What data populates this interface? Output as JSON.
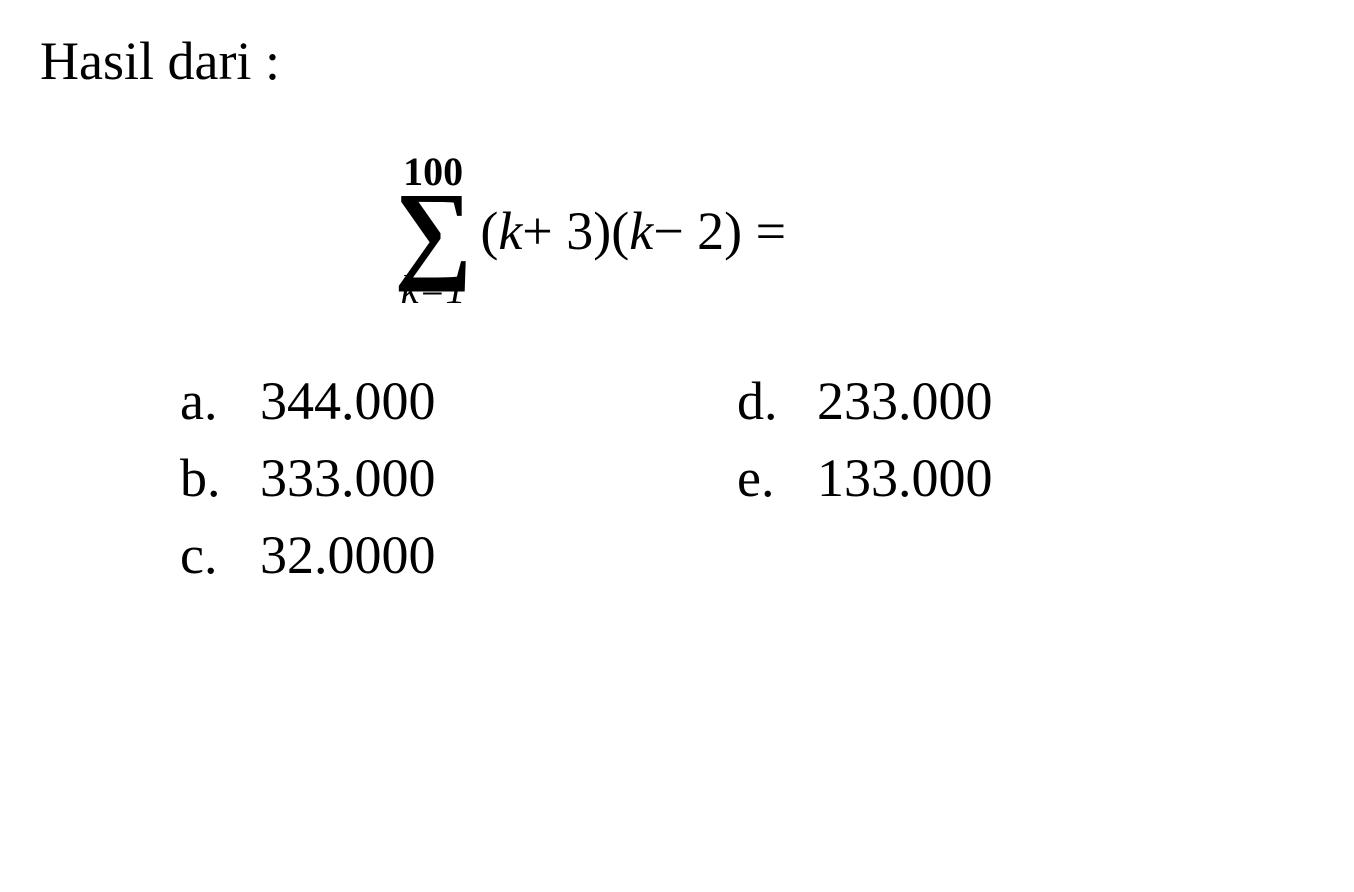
{
  "title": "Hasil dari :",
  "equation": {
    "sigma_upper": "100",
    "sigma_lower_var": "k",
    "sigma_lower_eq": "=1",
    "expr_open1": "(",
    "expr_var1": "k",
    "expr_op1": " + 3)(",
    "expr_var2": "k",
    "expr_op2": " − 2) ="
  },
  "options": {
    "a": {
      "letter": "a.",
      "value": "344.000"
    },
    "b": {
      "letter": "b.",
      "value": "333.000"
    },
    "c": {
      "letter": "c.",
      "value": "32.0000"
    },
    "d": {
      "letter": "d.",
      "value": "233.000"
    },
    "e": {
      "letter": "e.",
      "value": "133.000"
    }
  },
  "styling": {
    "background_color": "#ffffff",
    "text_color": "#000000",
    "font_family": "Times New Roman",
    "title_fontsize": 54,
    "equation_fontsize": 54,
    "sigma_fontsize": 110,
    "sigma_bounds_fontsize": 40,
    "option_fontsize": 54
  }
}
